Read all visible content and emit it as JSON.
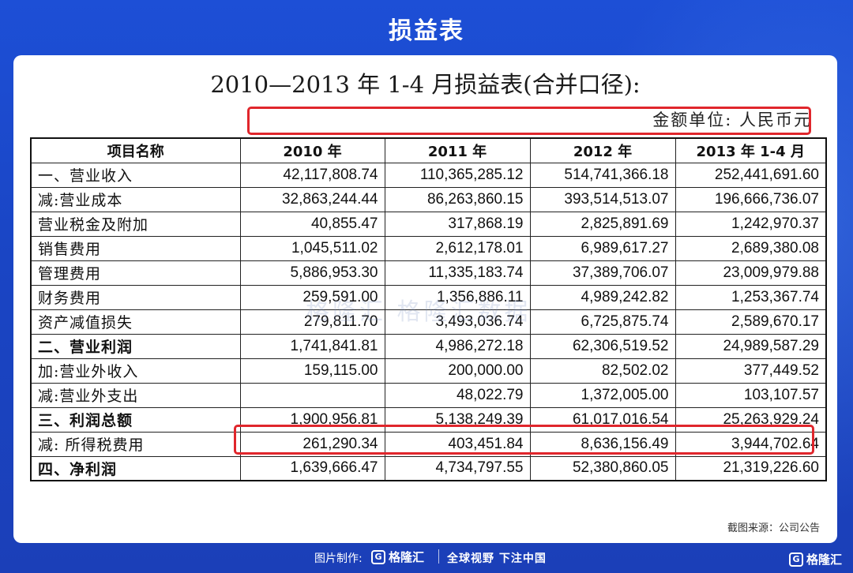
{
  "page_title": "损益表",
  "doc": {
    "title": "2010—2013 年 1-4 月损益表(合并口径):",
    "unit": "金额单位: 人民币元",
    "watermark": "格隆汇 格隆汇数据"
  },
  "table": {
    "headers": [
      "项目名称",
      "2010 年",
      "2011 年",
      "2012 年",
      "2013 年 1-4 月"
    ],
    "rows": [
      {
        "label": "一、营业收入",
        "bold": false,
        "values": [
          "42,117,808.74",
          "110,365,285.12",
          "514,741,366.18",
          "252,441,691.60"
        ]
      },
      {
        "label": "减:营业成本",
        "bold": false,
        "values": [
          "32,863,244.44",
          "86,263,860.15",
          "393,514,513.07",
          "196,666,736.07"
        ]
      },
      {
        "label": "营业税金及附加",
        "bold": false,
        "values": [
          "40,855.47",
          "317,868.19",
          "2,825,891.69",
          "1,242,970.37"
        ]
      },
      {
        "label": "销售费用",
        "bold": false,
        "values": [
          "1,045,511.02",
          "2,612,178.01",
          "6,989,617.27",
          "2,689,380.08"
        ]
      },
      {
        "label": "管理费用",
        "bold": false,
        "values": [
          "5,886,953.30",
          "11,335,183.74",
          "37,389,706.07",
          "23,009,979.88"
        ]
      },
      {
        "label": "财务费用",
        "bold": false,
        "values": [
          "259,591.00",
          "1,356,886.11",
          "4,989,242.82",
          "1,253,367.74"
        ]
      },
      {
        "label": "资产减值损失",
        "bold": false,
        "values": [
          "279,811.70",
          "3,493,036.74",
          "6,725,875.74",
          "2,589,670.17"
        ]
      },
      {
        "label": "二、营业利润",
        "bold": true,
        "values": [
          "1,741,841.81",
          "4,986,272.18",
          "62,306,519.52",
          "24,989,587.29"
        ]
      },
      {
        "label": "加:营业外收入",
        "bold": false,
        "values": [
          "159,115.00",
          "200,000.00",
          "82,502.02",
          "377,449.52"
        ]
      },
      {
        "label": "减:营业外支出",
        "bold": false,
        "values": [
          "",
          "48,022.79",
          "1,372,005.00",
          "103,107.57"
        ]
      },
      {
        "label": "三、利润总额",
        "bold": true,
        "values": [
          "1,900,956.81",
          "5,138,249.39",
          "61,017,016.54",
          "25,263,929.24"
        ]
      },
      {
        "label": "减: 所得税费用",
        "bold": false,
        "values": [
          "261,290.34",
          "403,451.84",
          "8,636,156.49",
          "3,944,702.64"
        ]
      },
      {
        "label": "四、净利润",
        "bold": true,
        "values": [
          "1,639,666.47",
          "4,734,797.55",
          "52,380,860.05",
          "21,319,226.60"
        ]
      }
    ]
  },
  "source": "截图来源：公司公告",
  "footer": {
    "made_by": "图片制作:",
    "brand": "格隆汇",
    "slogan": "全球视野 下注中国"
  },
  "colors": {
    "background": "#1d4fd6",
    "highlight": "#e0262c"
  }
}
